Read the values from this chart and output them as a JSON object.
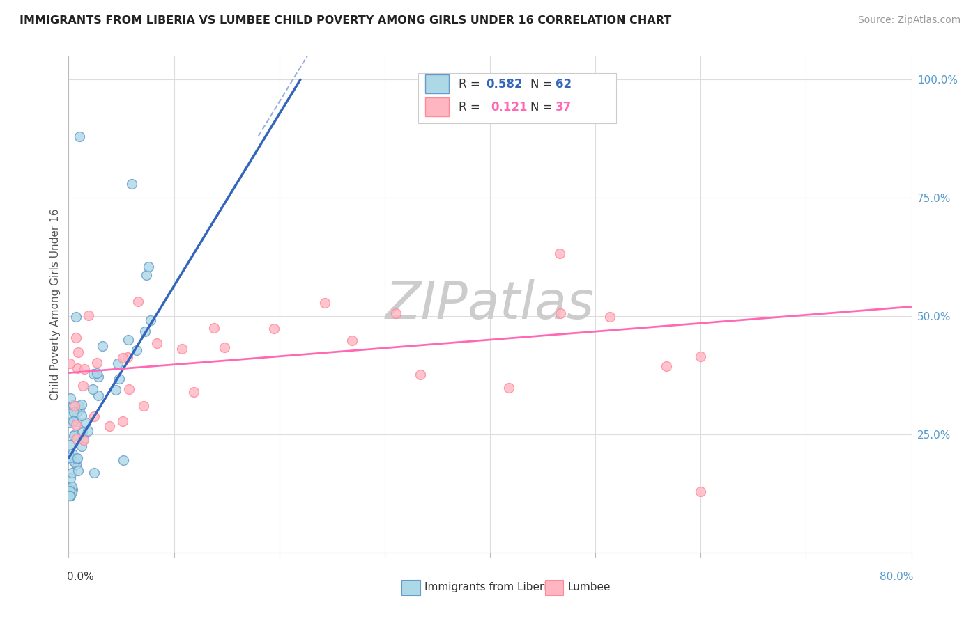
{
  "title": "IMMIGRANTS FROM LIBERIA VS LUMBEE CHILD POVERTY AMONG GIRLS UNDER 16 CORRELATION CHART",
  "source": "Source: ZipAtlas.com",
  "ylabel": "Child Poverty Among Girls Under 16",
  "xlim": [
    0.0,
    0.8
  ],
  "ylim": [
    0.0,
    1.05
  ],
  "color_blue_fill": "#ADD8E6",
  "color_blue_edge": "#6699CC",
  "color_blue_line": "#3366BB",
  "color_pink_fill": "#FFB6C1",
  "color_pink_edge": "#FF8899",
  "color_pink_line": "#FF69B4",
  "background_color": "#FFFFFF",
  "grid_color": "#DDDDDD",
  "watermark_color": "#CCCCCC",
  "ytick_color": "#5599CC"
}
